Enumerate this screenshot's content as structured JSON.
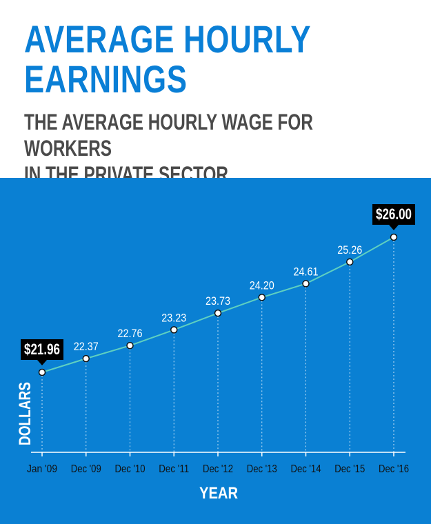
{
  "header": {
    "title_line1": "AVERAGE HOURLY",
    "title_line2": "EARNINGS",
    "subtitle_line1": "THE AVERAGE HOURLY WAGE FOR WORKERS",
    "subtitle_line2": "IN THE PRIVATE SECTOR."
  },
  "colors": {
    "title": "#0a7fd6",
    "subtitle": "#4a4a4a",
    "panel": "#0a80d3",
    "line": "#5fd0c0",
    "callout": "#000000",
    "text": "#ffffff"
  },
  "chart_data": {
    "type": "line",
    "title": "AVERAGE HOURLY EARNINGS",
    "subtitle": "THE AVERAGE HOURLY WAGE FOR WORKERS IN THE PRIVATE SECTOR.",
    "xlabel": "YEAR",
    "ylabel": "DOLLARS",
    "categories": [
      "Jan '09",
      "Dec '09",
      "Dec '10",
      "Dec '11",
      "Dec '12",
      "Dec '13",
      "Dec '14",
      "Dec '15",
      "Dec '16"
    ],
    "values": [
      21.96,
      22.37,
      22.76,
      23.23,
      23.73,
      24.2,
      24.61,
      25.26,
      26.0
    ],
    "labels": [
      "21.96",
      "22.37",
      "22.76",
      "23.23",
      "23.73",
      "24.20",
      "24.61",
      "25.26",
      "26.00"
    ],
    "callouts": [
      {
        "index": 0,
        "text": "$21.96"
      },
      {
        "index": 8,
        "text": "$26.00"
      }
    ],
    "ylim": [
      20.2,
      26.3
    ],
    "grid": false,
    "legend": "none"
  }
}
